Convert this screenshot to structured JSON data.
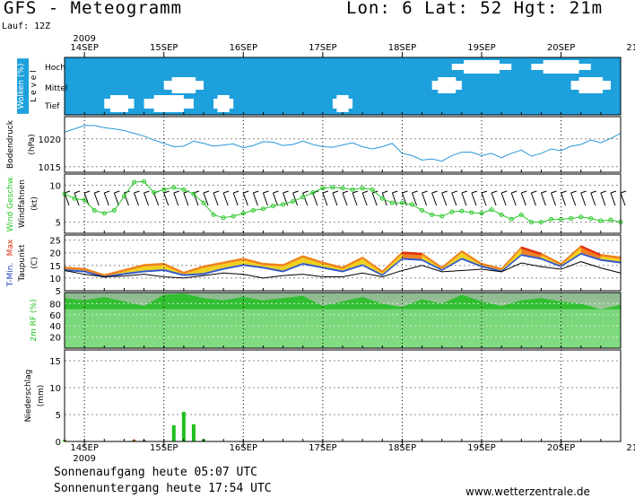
{
  "header": {
    "title": "GFS - Meteogramm",
    "coords": "Lon: 6 Lat: 52 Hgt: 21m",
    "run": "Lauf: 12Z",
    "year": "2009"
  },
  "x_axis": {
    "date_labels": [
      "14SEP",
      "15SEP",
      "16SEP",
      "17SEP",
      "18SEP",
      "19SEP",
      "20SEP",
      "21SEP"
    ],
    "year": "2009",
    "start": "13SEP 18Z",
    "step_hours": 6
  },
  "footer": {
    "sunrise": "Sonnenaufgang heute 05:07 UTC",
    "sunset": "Sonnenuntergang heute 17:54 UTC",
    "credit": "www.wetterzentrale.de"
  },
  "colors": {
    "sky": "#1ea0dc",
    "cloud": "#ffffff",
    "pressure": "#2898d8",
    "wind": "#28c828",
    "tmin": "#f0d020",
    "tmax": "#f08020",
    "tmax_hot": "#e03010",
    "rh": "#20c020",
    "precip": "#20c020",
    "precip_conv": "#d02010",
    "grid": "#888888"
  },
  "chart_data": [
    {
      "type": "area",
      "name": "clouds",
      "side_label": "Wolken (%)",
      "axis_title": "L e v e l",
      "levels": [
        "Hoch",
        "Mittel",
        "Tief"
      ],
      "segments": [
        {
          "level": "Hoch",
          "from_h": 117,
          "to_h": 135
        },
        {
          "level": "Hoch",
          "from_h": 141,
          "to_h": 159
        },
        {
          "level": "Mittel",
          "from_h": 30,
          "to_h": 42
        },
        {
          "level": "Mittel",
          "from_h": 111,
          "to_h": 120
        },
        {
          "level": "Mittel",
          "from_h": 153,
          "to_h": 165
        },
        {
          "level": "Tief",
          "from_h": 12,
          "to_h": 21
        },
        {
          "level": "Tief",
          "from_h": 24,
          "to_h": 39
        },
        {
          "level": "Tief",
          "from_h": 45,
          "to_h": 51
        },
        {
          "level": "Tief",
          "from_h": 81,
          "to_h": 87
        }
      ]
    },
    {
      "type": "line",
      "name": "pressure",
      "side_label": "Bodendruck",
      "unit": "(hPa)",
      "ylim": [
        1014,
        1024
      ],
      "yticks": [
        1015,
        1020
      ],
      "x_hours": [
        0,
        3,
        6,
        9,
        12,
        15,
        18,
        21,
        24,
        27,
        30,
        33,
        36,
        39,
        42,
        45,
        48,
        51,
        54,
        57,
        60,
        63,
        66,
        69,
        72,
        75,
        78,
        81,
        84,
        87,
        90,
        93,
        96,
        99,
        102,
        105,
        108,
        111,
        114,
        117,
        120,
        123,
        126,
        129,
        132,
        135,
        138,
        141,
        144,
        147,
        150,
        153,
        156,
        159,
        162,
        165,
        168
      ],
      "values": [
        1021.2,
        1021.8,
        1022.4,
        1022.4,
        1022.0,
        1021.8,
        1021.5,
        1021.0,
        1020.5,
        1019.8,
        1019.2,
        1018.6,
        1018.7,
        1019.6,
        1019.2,
        1018.7,
        1018.9,
        1019.1,
        1018.4,
        1018.8,
        1019.5,
        1019.4,
        1018.8,
        1019.0,
        1019.6,
        1019.0,
        1018.6,
        1018.5,
        1018.9,
        1019.3,
        1018.6,
        1018.2,
        1018.6,
        1019.2,
        1017.4,
        1017.0,
        1016.2,
        1016.4,
        1016.0,
        1017.0,
        1017.6,
        1017.6,
        1017.0,
        1017.4,
        1016.6,
        1017.4,
        1018.0,
        1016.9,
        1017.4,
        1018.2,
        1017.9,
        1018.7,
        1019.0,
        1019.8,
        1019.3,
        1020.1,
        1021.0
      ]
    },
    {
      "type": "line",
      "name": "wind",
      "side_label": "Wind Geschw.",
      "side_label2": "Windfahnen",
      "unit": "(kt)",
      "ylim": [
        3.5,
        11.5
      ],
      "yticks": [
        5,
        10
      ],
      "x_hours": [
        0,
        3,
        6,
        9,
        12,
        15,
        18,
        21,
        24,
        27,
        30,
        33,
        36,
        39,
        42,
        45,
        48,
        51,
        54,
        57,
        60,
        63,
        66,
        69,
        72,
        75,
        78,
        81,
        84,
        87,
        90,
        93,
        96,
        99,
        102,
        105,
        108,
        111,
        114,
        117,
        120,
        123,
        126,
        129,
        132,
        135,
        138,
        141,
        144,
        147,
        150,
        153,
        156,
        159,
        162,
        165,
        168
      ],
      "values": [
        8.8,
        8.2,
        8.0,
        6.6,
        6.2,
        6.6,
        8.5,
        10.4,
        10.5,
        9.0,
        9.4,
        9.7,
        9.4,
        8.8,
        7.6,
        6.0,
        5.6,
        5.8,
        6.2,
        6.6,
        6.8,
        7.2,
        7.4,
        7.8,
        8.4,
        9.0,
        9.6,
        9.7,
        9.6,
        9.4,
        9.6,
        9.4,
        8.2,
        7.6,
        7.6,
        7.4,
        6.6,
        6.0,
        5.8,
        6.4,
        6.5,
        6.3,
        6.2,
        6.7,
        6.0,
        5.4,
        6.0,
        5.0,
        5.0,
        5.4,
        5.4,
        5.5,
        5.7,
        5.5,
        5.2,
        5.3,
        5.0
      ]
    },
    {
      "type": "area",
      "name": "temperature",
      "side_label": "T-Min. Max",
      "side_label2": "Taupunkt",
      "unit": "(C)",
      "ylim": [
        5,
        27
      ],
      "yticks": [
        5,
        10,
        15,
        20,
        25
      ],
      "x_hours": [
        0,
        6,
        12,
        18,
        24,
        30,
        36,
        42,
        48,
        54,
        60,
        66,
        72,
        78,
        84,
        90,
        96,
        102,
        108,
        114,
        120,
        126,
        132,
        138,
        144,
        150,
        156,
        162,
        168
      ],
      "series": [
        {
          "name": "T-Max",
          "values": [
            14.5,
            14.0,
            11.5,
            13.5,
            15.5,
            16.0,
            12.5,
            15.0,
            16.5,
            18.0,
            16.0,
            15.5,
            19.0,
            16.5,
            14.5,
            18.5,
            13.0,
            20.5,
            20.0,
            14.5,
            21.0,
            16.0,
            14.0,
            22.5,
            20.0,
            16.0,
            23.0,
            19.5,
            18.5
          ]
        },
        {
          "name": "T-Min",
          "values": [
            13.5,
            13.0,
            10.8,
            12.0,
            13.0,
            13.5,
            11.5,
            12.0,
            14.0,
            15.5,
            14.5,
            13.0,
            16.0,
            14.5,
            13.0,
            15.5,
            11.5,
            18.0,
            17.5,
            13.5,
            18.0,
            15.0,
            13.0,
            19.5,
            18.0,
            15.0,
            20.0,
            17.5,
            16.5
          ]
        },
        {
          "name": "Taupunkt",
          "values": [
            13.0,
            11.5,
            10.5,
            10.8,
            11.5,
            10.5,
            10.0,
            11.0,
            12.0,
            11.5,
            10.0,
            11.0,
            11.5,
            10.5,
            10.5,
            12.0,
            10.5,
            13.0,
            15.0,
            12.5,
            13.0,
            13.5,
            12.5,
            16.0,
            14.5,
            13.5,
            16.5,
            14.0,
            12.0
          ]
        }
      ]
    },
    {
      "type": "area",
      "name": "rh",
      "side_label": "2m RF (%)",
      "ylim": [
        0,
        100
      ],
      "yticks": [
        20,
        40,
        60,
        80
      ],
      "x_hours": [
        0,
        6,
        12,
        18,
        24,
        30,
        36,
        42,
        48,
        54,
        60,
        66,
        72,
        78,
        84,
        90,
        96,
        102,
        108,
        114,
        120,
        126,
        132,
        138,
        144,
        150,
        156,
        162,
        168
      ],
      "values": [
        90,
        86,
        92,
        84,
        76,
        96,
        98,
        90,
        86,
        92,
        86,
        90,
        94,
        76,
        84,
        92,
        80,
        74,
        88,
        80,
        96,
        84,
        76,
        86,
        90,
        84,
        80,
        70,
        78
      ]
    },
    {
      "type": "bar",
      "name": "precipitation",
      "side_label": "Niederschlag",
      "unit": "(mm)",
      "ylim": [
        0,
        17
      ],
      "yticks": [
        0,
        5,
        10,
        15
      ],
      "x_hours": [
        0,
        21,
        24,
        33,
        36,
        39,
        42
      ],
      "values": [
        0.3,
        0.3,
        0.2,
        3.0,
        5.5,
        3.2,
        0.4
      ],
      "convective": [
        0.2,
        0.4,
        0.3,
        0,
        0,
        0,
        0
      ]
    }
  ]
}
